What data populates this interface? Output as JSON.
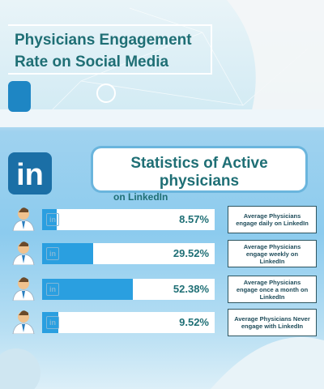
{
  "chart_data": {
    "type": "bar",
    "title": "Physicians Engagement Rate on Social Media",
    "subtitle": "Statistics of Active physicians",
    "subtitle2": "on LinkedIn",
    "categories": [
      "Average Physicians engage daily on LinkedIn",
      "Average Physicians engage weekly on LinkedIn",
      "Average Physicians engage once a month on LinkedIn",
      "Average Physicians Never engage with LinkedIn"
    ],
    "values": [
      8.57,
      29.52,
      52.38,
      9.52
    ],
    "value_labels": [
      "8.57%",
      "29.52%",
      "52.38%",
      "9.52%"
    ],
    "xlim": [
      0,
      100
    ],
    "color": "#2a9fe0"
  }
}
